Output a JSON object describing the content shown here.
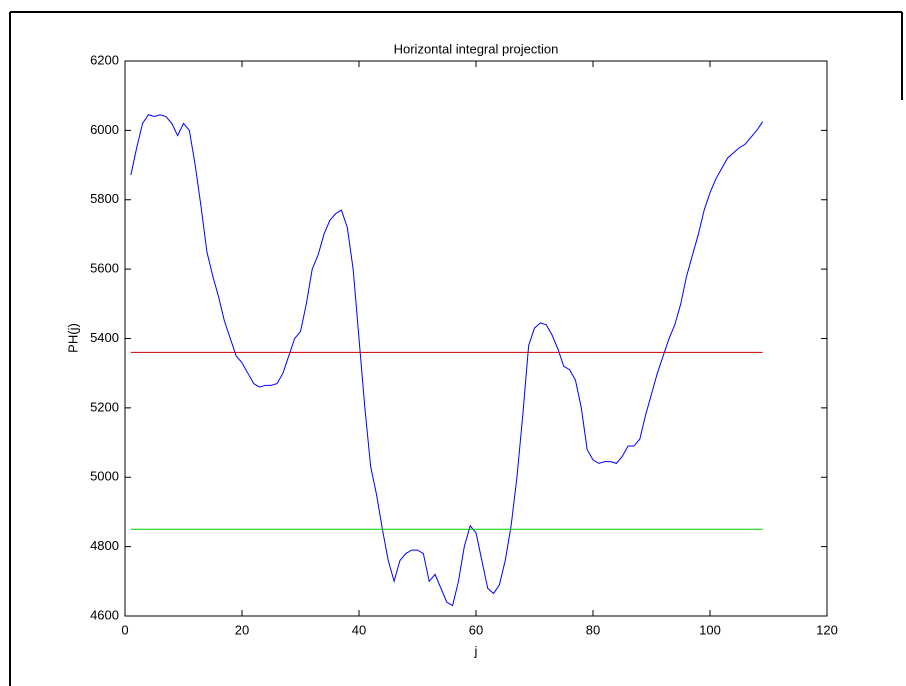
{
  "chart_data": {
    "type": "line",
    "title": "Horizontal integral projection",
    "x_label": "j",
    "y_label": "PH(j)",
    "xlim": [
      0,
      120
    ],
    "ylim": [
      4600,
      6200
    ],
    "xticks": [
      0,
      20,
      40,
      60,
      80,
      100,
      120
    ],
    "yticks": [
      4600,
      4800,
      5000,
      5200,
      5400,
      5600,
      5800,
      6000,
      6200
    ],
    "series": [
      {
        "color": "#0000ff",
        "x": [
          1,
          2,
          3,
          4,
          5,
          6,
          7,
          8,
          9,
          10,
          11,
          12,
          13,
          14,
          15,
          16,
          17,
          18,
          19,
          20,
          21,
          22,
          23,
          24,
          25,
          26,
          27,
          28,
          29,
          30,
          31,
          32,
          33,
          34,
          35,
          36,
          37,
          38,
          39,
          40,
          41,
          42,
          43,
          44,
          45,
          46,
          47,
          48,
          49,
          50,
          51,
          52,
          53,
          54,
          55,
          56,
          57,
          58,
          59,
          60,
          61,
          62,
          63,
          64,
          65,
          66,
          67,
          68,
          69,
          70,
          71,
          72,
          73,
          74,
          75,
          76,
          77,
          78,
          79,
          80,
          81,
          82,
          83,
          84,
          85,
          86,
          87,
          88,
          89,
          90,
          91,
          92,
          93,
          94,
          95,
          96,
          97,
          98,
          99,
          100,
          101,
          102,
          103,
          104,
          105,
          106,
          107,
          108,
          109
        ],
        "values": [
          5871,
          5950,
          6020,
          6045,
          6040,
          6045,
          6040,
          6020,
          5985,
          6020,
          6000,
          5900,
          5780,
          5650,
          5580,
          5520,
          5450,
          5400,
          5350,
          5330,
          5300,
          5270,
          5260,
          5265,
          5265,
          5270,
          5300,
          5350,
          5400,
          5420,
          5500,
          5600,
          5640,
          5700,
          5740,
          5760,
          5770,
          5720,
          5600,
          5400,
          5200,
          5030,
          4950,
          4850,
          4760,
          4700,
          4760,
          4780,
          4790,
          4790,
          4780,
          4700,
          4720,
          4680,
          4640,
          4630,
          4700,
          4800,
          4860,
          4840,
          4760,
          4680,
          4665,
          4690,
          4760,
          4860,
          5000,
          5180,
          5380,
          5430,
          5445,
          5440,
          5410,
          5370,
          5320,
          5310,
          5280,
          5200,
          5080,
          5050,
          5040,
          5045,
          5045,
          5040,
          5060,
          5090,
          5090,
          5110,
          5180,
          5240,
          5300,
          5350,
          5400,
          5440,
          5500,
          5580,
          5640,
          5700,
          5770,
          5820,
          5860,
          5890,
          5920,
          5935,
          5950,
          5960,
          5980,
          6000,
          6025
        ]
      },
      {
        "color": "#cc0000",
        "x": [
          1,
          109
        ],
        "values": [
          5360,
          5360
        ]
      },
      {
        "color": "#00cc00",
        "x": [
          1,
          109
        ],
        "values": [
          4850,
          4850
        ]
      }
    ]
  }
}
